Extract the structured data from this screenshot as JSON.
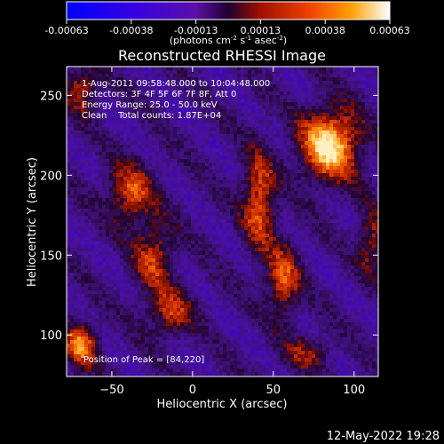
{
  "chart_data": {
    "type": "heatmap",
    "title": "Reconstructed RHESSI Image",
    "xlabel": "Heliocentric X (arcsec)",
    "ylabel": "Heliocentric Y (arcsec)",
    "xlim": [
      -78,
      115
    ],
    "ylim": [
      74,
      268
    ],
    "x_ticks": [
      -50,
      0,
      50,
      100
    ],
    "y_ticks": [
      100,
      150,
      200,
      250
    ],
    "colorbar": {
      "min": -0.00063,
      "max": 0.00063,
      "ticks": [
        "-0.00063",
        "-0.00038",
        "-0.00013",
        "0.00013",
        "0.00038",
        "0.00063"
      ],
      "unit_label_parts": [
        "(photons cm",
        "-2",
        " s",
        "-1",
        " asec",
        "-2",
        ")"
      ]
    },
    "annotations": [
      "1-Aug-2011 09:58:48.000 to 10:04:48.000",
      "Detectors: 3F 4F 5F 6F 7F 8F, Att 0",
      "Energy Range: 25.0 - 50.0 keV",
      "Clean    Total counts: 1.87E+04"
    ],
    "peak_label": "Position of Peak = [84,220]",
    "peak": [
      84,
      220
    ]
  },
  "footer": {
    "timestamp": "12-May-2022 19:28"
  }
}
